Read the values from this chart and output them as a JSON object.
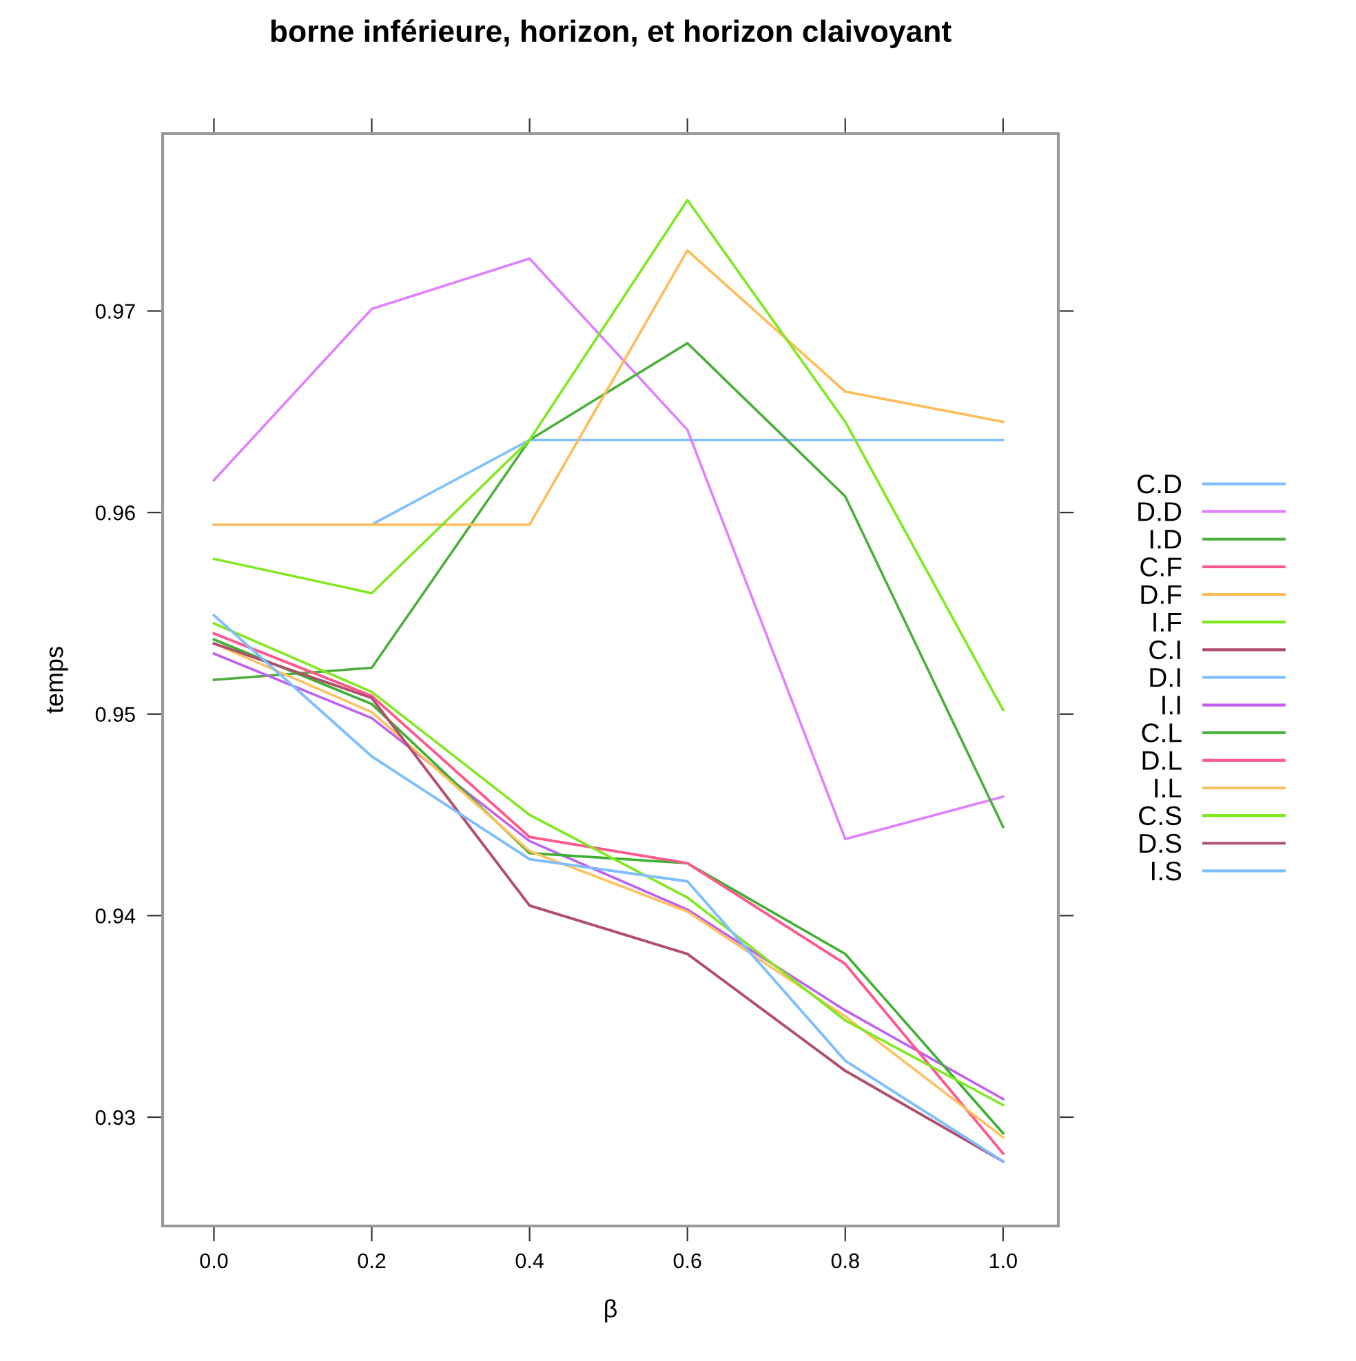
{
  "chart_data": {
    "type": "line",
    "title": "borne inférieure, horizon, et horizon claivoyant",
    "xlabel": "β",
    "ylabel": "temps",
    "x": [
      0.0,
      0.2,
      0.4,
      0.6,
      0.8,
      1.0
    ],
    "xlim": [
      -0.065,
      1.07
    ],
    "xticks": [
      {
        "value": 0.0,
        "label": "0.0"
      },
      0.2,
      0.4,
      0.6,
      0.8,
      {
        "value": 1.0,
        "label": "1.0"
      }
    ],
    "ylim": [
      0.9246,
      0.9788
    ],
    "yticks": [
      0.93,
      0.94,
      0.95,
      0.96,
      0.97
    ],
    "grid": false,
    "legend": "right",
    "marker": "none",
    "line_style": "solid",
    "series": [
      {
        "name": "C.D",
        "color": "#7fbfff",
        "values": [
          0.9594,
          0.9594,
          0.9636,
          0.9636,
          0.9636,
          0.9636
        ]
      },
      {
        "name": "D.D",
        "color": "#e080ff",
        "values": [
          0.9616,
          0.9701,
          0.9726,
          0.9641,
          0.9438,
          0.9459
        ]
      },
      {
        "name": "I.D",
        "color": "#4caf3c",
        "values": [
          0.9517,
          0.9523,
          0.9636,
          0.9684,
          0.9608,
          0.9444
        ]
      },
      {
        "name": "C.F",
        "color": "#ff5a8c",
        "values": [
          0.954,
          0.9509,
          0.9439,
          0.9426,
          0.9376,
          0.9282
        ]
      },
      {
        "name": "D.F",
        "color": "#ffbb55",
        "values": [
          0.9594,
          0.9594,
          0.9594,
          0.973,
          0.966,
          0.9645
        ]
      },
      {
        "name": "I.F",
        "color": "#80e820",
        "values": [
          0.9577,
          0.956,
          0.9636,
          0.9755,
          0.9645,
          0.9502
        ]
      },
      {
        "name": "C.I",
        "color": "#b0506e",
        "values": [
          0.9535,
          0.9508,
          0.9405,
          0.9381,
          0.9323,
          0.9278
        ]
      },
      {
        "name": "D.I",
        "color": "#7fbfff",
        "values": [
          0.9549,
          0.9479,
          0.9428,
          0.9417,
          0.9328,
          0.9278
        ]
      },
      {
        "name": "I.I",
        "color": "#c060f0",
        "values": [
          0.953,
          0.9498,
          0.9437,
          0.9403,
          0.9353,
          0.9309
        ]
      },
      {
        "name": "C.L",
        "color": "#3cb030",
        "values": [
          0.9537,
          0.9505,
          0.9431,
          0.9426,
          0.9381,
          0.9292
        ]
      },
      {
        "name": "D.L",
        "color": "#ff5a8c",
        "values": [
          0.954,
          0.9509,
          0.9439,
          0.9426,
          0.9376,
          0.9282
        ]
      },
      {
        "name": "I.L",
        "color": "#ffc060",
        "values": [
          0.9535,
          0.9501,
          0.9432,
          0.9402,
          0.935,
          0.929
        ]
      },
      {
        "name": "C.S",
        "color": "#80e820",
        "values": [
          0.9545,
          0.9511,
          0.945,
          0.9409,
          0.9348,
          0.9306
        ]
      },
      {
        "name": "D.S",
        "color": "#b0506e",
        "values": [
          0.9535,
          0.9508,
          0.9405,
          0.9381,
          0.9323,
          0.9278
        ]
      },
      {
        "name": "I.S",
        "color": "#7fbfff",
        "values": [
          0.9549,
          0.9479,
          0.9428,
          0.9417,
          0.9328,
          0.9278
        ]
      }
    ]
  }
}
